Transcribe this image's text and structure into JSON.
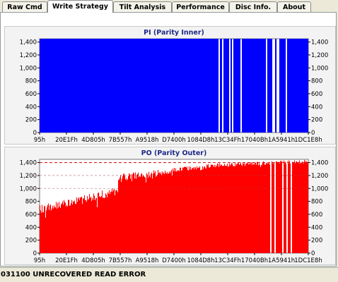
{
  "tabs": [
    {
      "label": "Raw Cmd",
      "active": false
    },
    {
      "label": "Write Strategy",
      "active": true
    },
    {
      "label": "Tilt Analysis",
      "active": false
    },
    {
      "label": "Performance",
      "active": false
    },
    {
      "label": "Disc Info.",
      "active": false
    },
    {
      "label": "About",
      "active": false
    }
  ],
  "status": {
    "message": "031100 UNRECOVERED READ ERROR"
  },
  "colors": {
    "pi_fill": "#0000ff",
    "po_fill": "#ff0000",
    "title": "#1f2a87",
    "max_line": "#cc0000"
  },
  "chart_data": [
    {
      "type": "area",
      "title": "PI (Parity Inner)",
      "series": [
        {
          "name": "PI (Parity Inner)",
          "color": "#0000ff"
        }
      ],
      "x_ticks": [
        "95h",
        "20E1Fh",
        "4D805h",
        "7B557h",
        "A9518h",
        "D7400h",
        "1084D8h",
        "13C34Fh",
        "17040Bh",
        "1A5941h",
        "1DC1E8h"
      ],
      "y_ticks": [
        0,
        200,
        400,
        600,
        800,
        1000,
        1200,
        1400
      ],
      "y_tick_labels": [
        "0",
        "200",
        "400",
        "600",
        "800",
        "1,000",
        "1,200",
        "1,400"
      ],
      "ylim": [
        0,
        1450
      ],
      "max_line": null,
      "segments": [
        {
          "x": [
            0.0,
            1.0
          ],
          "base": 1450,
          "noise": 0
        }
      ],
      "gaps": [
        0.667,
        0.681,
        0.706,
        0.718,
        0.748,
        0.748,
        0.843,
        0.868,
        0.872,
        0.884,
        0.887,
        0.918
      ]
    },
    {
      "type": "area",
      "title": "PO (Parity Outer)",
      "series": [
        {
          "name": "PO (Parity Outer)",
          "color": "#ff0000"
        }
      ],
      "x_ticks": [
        "95h",
        "20E1Fh",
        "4D805h",
        "7B557h",
        "A9518h",
        "D7400h",
        "1084D8h",
        "13C34Fh",
        "17040Bh",
        "1A5941h",
        "1DC1E8h"
      ],
      "y_ticks": [
        0,
        200,
        400,
        600,
        800,
        1000,
        1200,
        1400
      ],
      "y_tick_labels": [
        "0",
        "200",
        "400",
        "600",
        "800",
        "1,000",
        "1,200",
        "1,400"
      ],
      "ylim": [
        0,
        1450
      ],
      "max_line": 1400,
      "segments": [
        {
          "x": [
            0.0,
            0.29
          ],
          "base": [
            740,
            1030
          ],
          "noise": 130
        },
        {
          "x": [
            0.29,
            0.44
          ],
          "base": [
            1220,
            1290
          ],
          "noise": 110
        },
        {
          "x": [
            0.44,
            0.49
          ],
          "base": [
            1250,
            1300
          ],
          "noise": 60
        },
        {
          "x": [
            0.49,
            0.62
          ],
          "base": [
            1330,
            1350
          ],
          "noise": 70
        },
        {
          "x": [
            0.62,
            1.0
          ],
          "base": [
            1380,
            1450
          ],
          "noise": 60
        }
      ],
      "gaps": [
        0.86,
        0.875,
        0.905,
        0.92,
        0.935
      ]
    }
  ]
}
